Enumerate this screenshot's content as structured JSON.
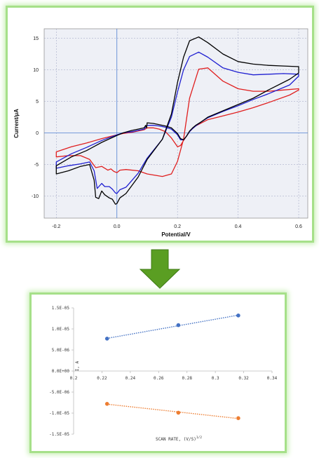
{
  "colors": {
    "frame_border": "#a6e089",
    "arrow_fill": "#5a9e22",
    "cv_series": [
      "#000000",
      "#1f1fd1",
      "#e01f1f"
    ],
    "scan_series": [
      "#4472c4",
      "#ed7d31"
    ]
  },
  "arrow": {
    "icon": "down-arrow-icon"
  },
  "chart_data": [
    {
      "type": "line",
      "xlabel": "Potential/V",
      "ylabel": "Current/µA",
      "xlim": [
        -0.24,
        0.63
      ],
      "ylim": [
        -13.5,
        16.5
      ],
      "xticks": [
        -0.2,
        0,
        0.2,
        0.4,
        0.6
      ],
      "xtick_labels": [
        "-0.2",
        "0.0",
        "0.2",
        "0.4",
        "0.6"
      ],
      "yticks": [
        -10,
        -5,
        0,
        5,
        10,
        15
      ],
      "ytick_labels": [
        "-10",
        "-5",
        "0",
        "5",
        "10",
        "15"
      ],
      "grid": true,
      "series": [
        {
          "color": "#000000",
          "x": [
            -0.2,
            -0.16,
            -0.12,
            -0.09,
            -0.075,
            -0.07,
            -0.06,
            -0.05,
            -0.04,
            -0.025,
            -0.015,
            -0.005,
            0.0,
            0.01,
            0.03,
            0.07,
            0.1,
            0.15,
            0.18,
            0.2,
            0.22,
            0.24,
            0.27,
            0.3,
            0.35,
            0.4,
            0.45,
            0.5,
            0.55,
            0.6,
            0.6,
            0.57,
            0.5,
            0.45,
            0.4,
            0.35,
            0.3,
            0.28,
            0.26,
            0.25,
            0.24,
            0.23,
            0.22,
            0.21,
            0.2,
            0.18,
            0.16,
            0.14,
            0.12,
            0.1,
            0.098,
            0.095,
            0.09,
            0.07,
            0.05,
            0.02,
            0.0,
            -0.05,
            -0.1,
            -0.15,
            -0.2
          ],
          "y": [
            -6.5,
            -6.0,
            -5.3,
            -5.0,
            -7.5,
            -10.2,
            -10.4,
            -9.2,
            -9.8,
            -10.3,
            -10.5,
            -11.3,
            -11.2,
            -10.3,
            -9.6,
            -7.0,
            -4.2,
            -1.0,
            3.0,
            8.0,
            12.0,
            14.6,
            15.2,
            14.3,
            12.5,
            11.3,
            10.9,
            10.7,
            10.6,
            10.5,
            9.5,
            8.5,
            6.8,
            5.5,
            4.5,
            3.5,
            2.5,
            1.8,
            1.2,
            0.8,
            0.3,
            -0.5,
            -1.1,
            -0.9,
            -0.1,
            0.8,
            1.1,
            1.3,
            1.5,
            1.6,
            0.8,
            1.2,
            0.8,
            0.6,
            0.4,
            0.0,
            -0.4,
            -1.5,
            -2.8,
            -3.8,
            -5.2
          ]
        },
        {
          "color": "#1f1fd1",
          "x": [
            -0.2,
            -0.16,
            -0.12,
            -0.09,
            -0.075,
            -0.065,
            -0.05,
            -0.04,
            -0.025,
            -0.015,
            -0.005,
            0.0,
            0.01,
            0.03,
            0.07,
            0.1,
            0.15,
            0.18,
            0.2,
            0.22,
            0.24,
            0.27,
            0.3,
            0.35,
            0.4,
            0.45,
            0.5,
            0.55,
            0.6,
            0.6,
            0.57,
            0.5,
            0.45,
            0.4,
            0.35,
            0.3,
            0.28,
            0.26,
            0.25,
            0.24,
            0.23,
            0.22,
            0.21,
            0.2,
            0.18,
            0.16,
            0.14,
            0.12,
            0.1,
            0.095,
            0.09,
            0.07,
            0.05,
            0.02,
            0.0,
            -0.05,
            -0.1,
            -0.15,
            -0.2
          ],
          "y": [
            -5.6,
            -5.2,
            -4.9,
            -4.6,
            -6.0,
            -8.8,
            -8.0,
            -8.5,
            -8.5,
            -8.9,
            -9.5,
            -9.6,
            -9.0,
            -8.6,
            -6.4,
            -4.0,
            -1.0,
            2.5,
            6.5,
            10.0,
            12.1,
            12.8,
            12.0,
            10.3,
            9.6,
            9.2,
            9.3,
            9.4,
            9.3,
            9.0,
            7.6,
            6.2,
            5.3,
            4.3,
            3.4,
            2.4,
            1.8,
            1.1,
            0.7,
            0.2,
            -0.5,
            -1.1,
            -1.1,
            -0.3,
            0.6,
            0.9,
            1.1,
            1.2,
            1.2,
            0.9,
            0.6,
            0.4,
            0.2,
            0.0,
            -0.3,
            -1.2,
            -2.3,
            -3.3,
            -4.6
          ]
        },
        {
          "color": "#e01f1f",
          "x": [
            -0.2,
            -0.16,
            -0.12,
            -0.09,
            -0.07,
            -0.05,
            -0.03,
            -0.02,
            -0.01,
            0.0,
            0.01,
            0.03,
            0.07,
            0.1,
            0.15,
            0.18,
            0.2,
            0.22,
            0.24,
            0.27,
            0.3,
            0.35,
            0.4,
            0.45,
            0.5,
            0.55,
            0.6,
            0.6,
            0.57,
            0.5,
            0.45,
            0.4,
            0.35,
            0.3,
            0.28,
            0.26,
            0.25,
            0.24,
            0.23,
            0.22,
            0.21,
            0.2,
            0.18,
            0.16,
            0.14,
            0.12,
            0.1,
            0.09,
            0.07,
            0.05,
            0.02,
            0.0,
            -0.05,
            -0.1,
            -0.15,
            -0.2
          ],
          "y": [
            -3.8,
            -3.6,
            -3.6,
            -4.2,
            -5.5,
            -5.3,
            -5.9,
            -5.7,
            -6.1,
            -6.3,
            -5.9,
            -5.8,
            -6.0,
            -6.5,
            -6.9,
            -6.5,
            -4.5,
            -1.0,
            5.5,
            10.1,
            10.3,
            8.2,
            7.0,
            6.6,
            6.6,
            6.8,
            7.0,
            6.8,
            6.0,
            4.8,
            4.0,
            3.3,
            2.7,
            2.1,
            1.6,
            1.1,
            0.7,
            0.2,
            -0.5,
            -1.2,
            -2.0,
            -2.2,
            -0.8,
            0.2,
            0.6,
            0.8,
            0.8,
            0.5,
            0.3,
            0.1,
            -0.1,
            -0.3,
            -0.9,
            -1.6,
            -2.2,
            -3.0
          ]
        }
      ]
    },
    {
      "type": "scatter",
      "xlabel": "SCAN RATE, (V/S)",
      "xlabel_superscript": "1/2",
      "ylabel": "I, A",
      "xlim": [
        0.2,
        0.34
      ],
      "ylim": [
        -1.5e-05,
        1.5e-05
      ],
      "xticks": [
        0.2,
        0.22,
        0.24,
        0.26,
        0.28,
        0.3,
        0.32,
        0.34
      ],
      "xtick_labels": [
        "0.2",
        "0.22",
        "0.24",
        "0.26",
        "0.28",
        "0.3",
        "0.32",
        "0.34"
      ],
      "yticks": [
        1.5e-05,
        1e-05,
        5e-06,
        0,
        -5e-06,
        -1e-05,
        -1.5e-05
      ],
      "ytick_labels": [
        "1.5E-05",
        "1.0E-05",
        "5.0E-06",
        "0.0E+00",
        "-5.0E-06",
        "-1.0E-05",
        "-1.5E-05"
      ],
      "grid": false,
      "trendline": "linear, dotted",
      "series": [
        {
          "color": "#4472c4",
          "x": [
            0.2236,
            0.2739,
            0.3162
          ],
          "y": [
            7.7e-06,
            1.09e-05,
            1.32e-05
          ]
        },
        {
          "color": "#ed7d31",
          "x": [
            0.2236,
            0.2739,
            0.3162
          ],
          "y": [
            -7.8e-06,
            -9.9e-06,
            -1.12e-05
          ]
        }
      ]
    }
  ]
}
